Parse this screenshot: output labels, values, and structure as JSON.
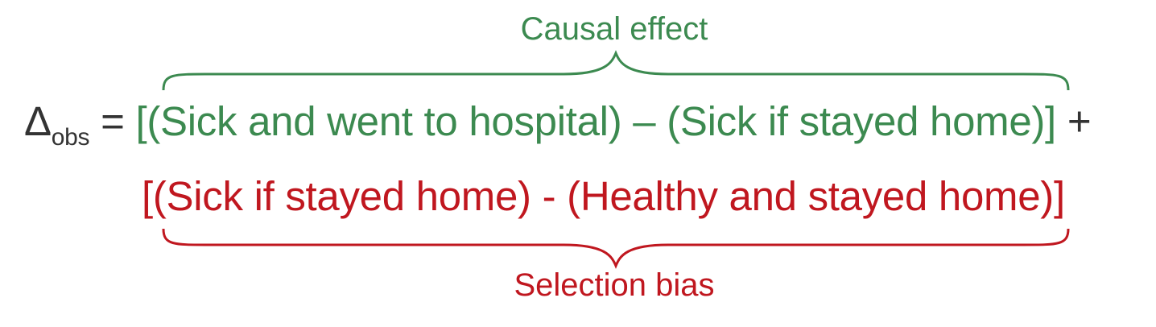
{
  "colors": {
    "green": "#3c8a50",
    "red": "#c0171f",
    "black": "#333333"
  },
  "labels": {
    "causal_effect": "Causal effect",
    "selection_bias": "Selection bias"
  },
  "equation": {
    "delta_symbol": "Δ",
    "delta_subscript": "obs",
    "equals": "=",
    "term1": "[(Sick and went to hospital) – (Sick if stayed home)]",
    "plus": "+",
    "term2": "[(Sick if stayed home) - (Healthy and stayed home)]"
  }
}
